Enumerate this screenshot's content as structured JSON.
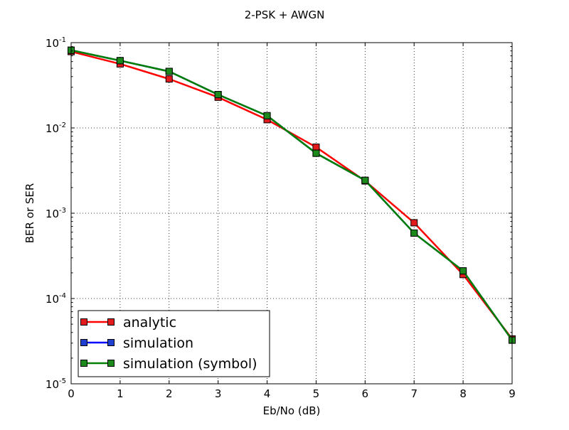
{
  "chart_data": {
    "type": "line",
    "title": "2-PSK + AWGN",
    "xlabel": "Eb/No (dB)",
    "ylabel": "BER or SER",
    "yscale": "log",
    "xlim": [
      0,
      9
    ],
    "ylim": [
      1e-05,
      0.1
    ],
    "grid": true,
    "legend_position": "lower-left",
    "x_ticks": [
      {
        "value": 0,
        "label": "0"
      },
      {
        "value": 1,
        "label": "1"
      },
      {
        "value": 2,
        "label": "2"
      },
      {
        "value": 3,
        "label": "3"
      },
      {
        "value": 4,
        "label": "4"
      },
      {
        "value": 5,
        "label": "5"
      },
      {
        "value": 6,
        "label": "6"
      },
      {
        "value": 7,
        "label": "7"
      },
      {
        "value": 8,
        "label": "8"
      },
      {
        "value": 9,
        "label": "9"
      }
    ],
    "y_ticks": [
      {
        "value": 0.1,
        "base": "10",
        "exp": "-1"
      },
      {
        "value": 0.01,
        "base": "10",
        "exp": "-2"
      },
      {
        "value": 0.001,
        "base": "10",
        "exp": "-3"
      },
      {
        "value": 0.0001,
        "base": "10",
        "exp": "-4"
      },
      {
        "value": 1e-05,
        "base": "10",
        "exp": "-5"
      }
    ],
    "x": [
      0,
      1,
      2,
      3,
      4,
      5,
      6,
      7,
      8,
      9
    ],
    "series": [
      {
        "name": "analytic",
        "color": "#ff0000",
        "marker_color": "#e31a1c",
        "values": [
          0.0786,
          0.0563,
          0.0375,
          0.0229,
          0.0125,
          0.00595,
          0.00239,
          0.000773,
          0.000191,
          3.36e-05
        ]
      },
      {
        "name": "simulation",
        "color": "#0000ff",
        "marker_color": "#1f3fd0",
        "values": [
          0.0815,
          0.0615,
          0.046,
          0.0246,
          0.0139,
          0.00505,
          0.00243,
          0.000585,
          0.000211,
          3.25e-05
        ]
      },
      {
        "name": "simulation (symbol)",
        "color": "#008000",
        "marker_color": "#1b8a1b",
        "values": [
          0.0815,
          0.0615,
          0.046,
          0.0246,
          0.0139,
          0.00505,
          0.00243,
          0.000585,
          0.000211,
          3.25e-05
        ]
      }
    ]
  }
}
